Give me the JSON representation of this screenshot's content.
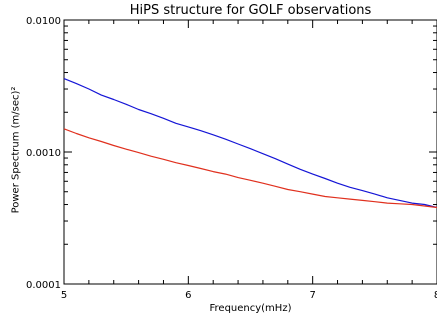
{
  "chart_data": {
    "type": "line",
    "title": "HiPS structure for GOLF observations",
    "xlabel": "Frequency(mHz)",
    "ylabel": "Power Spectrum (m/sec)²",
    "xlim": [
      5,
      8
    ],
    "ylim": [
      0.0001,
      0.01
    ],
    "yscale": "log",
    "x_ticks": [
      5,
      6,
      7,
      8
    ],
    "x_tick_labels": [
      "5",
      "6",
      "7",
      "8"
    ],
    "y_ticks": [
      0.0001,
      0.001,
      0.01
    ],
    "y_tick_labels": [
      "0.0001",
      "0.0010",
      "0.0100"
    ],
    "grid": false,
    "series": [
      {
        "color": "#1515d6",
        "x": [
          5.0,
          5.1,
          5.2,
          5.3,
          5.4,
          5.5,
          5.6,
          5.7,
          5.8,
          5.9,
          6.0,
          6.1,
          6.2,
          6.3,
          6.4,
          6.5,
          6.6,
          6.7,
          6.8,
          6.9,
          7.0,
          7.1,
          7.2,
          7.3,
          7.4,
          7.5,
          7.6,
          7.7,
          7.8,
          7.9,
          8.0
        ],
        "y": [
          0.0036,
          0.0033,
          0.003,
          0.0027,
          0.0025,
          0.0023,
          0.0021,
          0.00195,
          0.0018,
          0.00165,
          0.00155,
          0.00145,
          0.00135,
          0.00125,
          0.00115,
          0.00106,
          0.00097,
          0.00089,
          0.00081,
          0.00074,
          0.00068,
          0.00063,
          0.00058,
          0.00054,
          0.00051,
          0.00048,
          0.00045,
          0.00043,
          0.00041,
          0.0004,
          0.00038
        ]
      },
      {
        "color": "#e0301e",
        "x": [
          5.0,
          5.1,
          5.2,
          5.3,
          5.4,
          5.5,
          5.6,
          5.7,
          5.8,
          5.9,
          6.0,
          6.1,
          6.2,
          6.3,
          6.4,
          6.5,
          6.6,
          6.7,
          6.8,
          6.9,
          7.0,
          7.1,
          7.2,
          7.3,
          7.4,
          7.5,
          7.6,
          7.7,
          7.8,
          7.9,
          8.0
        ],
        "y": [
          0.0015,
          0.00138,
          0.00128,
          0.0012,
          0.00112,
          0.00105,
          0.00099,
          0.00093,
          0.00088,
          0.00083,
          0.00079,
          0.00075,
          0.00071,
          0.00068,
          0.00064,
          0.00061,
          0.00058,
          0.00055,
          0.00052,
          0.0005,
          0.00048,
          0.00046,
          0.00045,
          0.00044,
          0.00043,
          0.00042,
          0.00041,
          0.000405,
          0.0004,
          0.00039,
          0.00038
        ]
      }
    ]
  }
}
